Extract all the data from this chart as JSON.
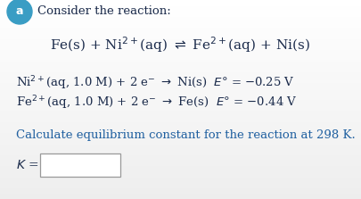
{
  "bg_top": "#f0f0f0",
  "bg_bottom": "#d8d8d8",
  "circle_color": "#3a9dc4",
  "circle_text": "a",
  "header": "Consider the reaction:",
  "text_color": "#1a2a4a",
  "calc_color": "#2060a0",
  "figsize": [
    4.05,
    2.23
  ],
  "dpi": 100
}
